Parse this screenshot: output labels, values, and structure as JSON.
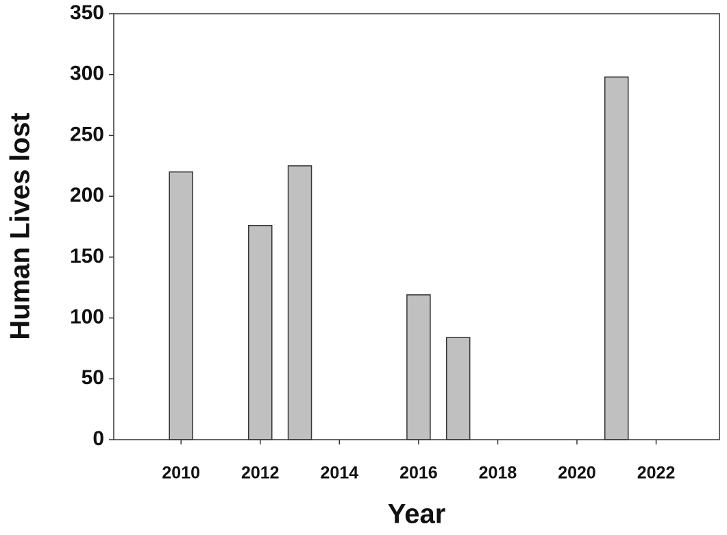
{
  "chart_data": {
    "type": "bar",
    "x_label": "Year",
    "y_label": "Human Lives lost",
    "x": [
      2010,
      2012,
      2013,
      2016,
      2017,
      2021
    ],
    "values": [
      220,
      176,
      225,
      119,
      84,
      298
    ],
    "color": "#c0c0c0",
    "xlim": [
      2008.3,
      2023.6
    ],
    "xticks": [
      2010,
      2012,
      2014,
      2016,
      2018,
      2020,
      2022
    ],
    "ylim": [
      0,
      350
    ],
    "yticks": [
      0,
      50,
      100,
      150,
      200,
      250,
      300,
      350
    ],
    "grid": false
  }
}
